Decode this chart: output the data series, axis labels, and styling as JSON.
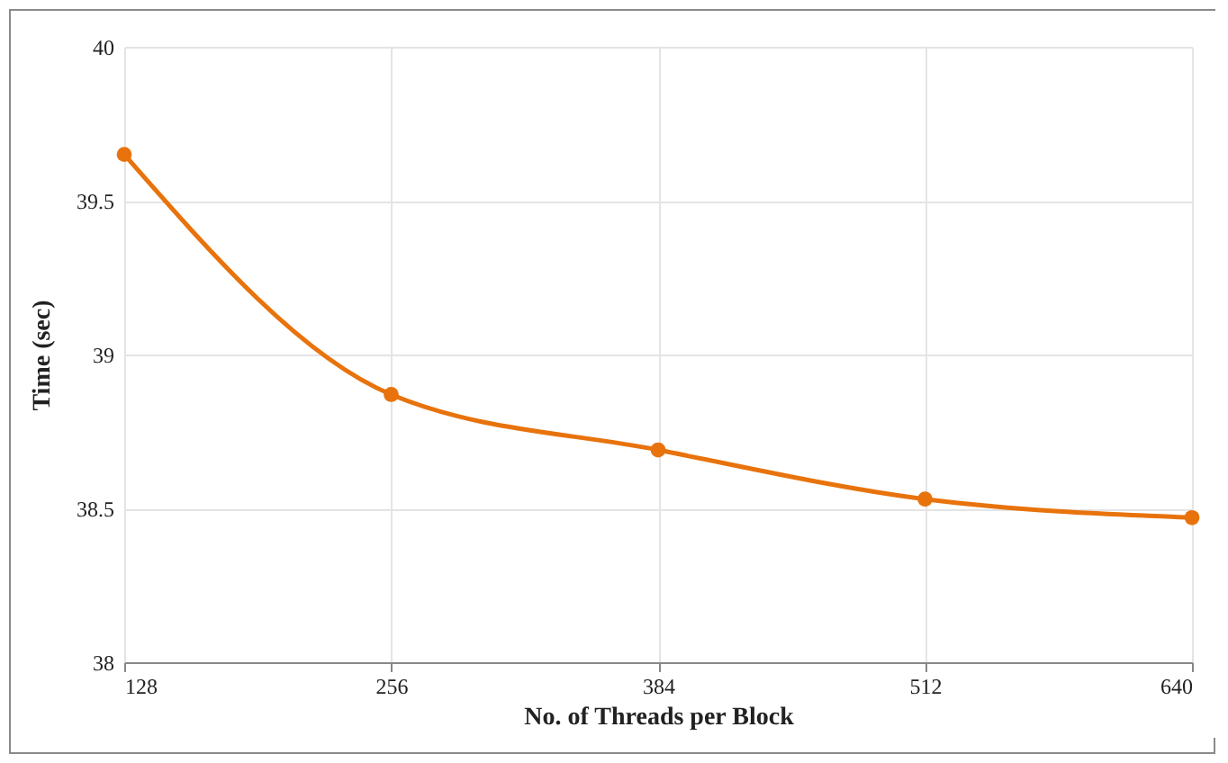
{
  "chart_data": {
    "type": "line",
    "xlabel": "No. of Threads per Block",
    "ylabel": "Time (sec)",
    "x": [
      128,
      256,
      384,
      512,
      640
    ],
    "series": [
      {
        "color": "#e8730c",
        "values": [
          39.65,
          38.87,
          38.69,
          38.53,
          38.47
        ]
      }
    ],
    "xlim": [
      128,
      640
    ],
    "xticks": [
      128,
      256,
      384,
      512,
      640
    ],
    "ylim": [
      38,
      40
    ],
    "yticks": [
      38,
      38.5,
      39,
      39.5,
      40
    ],
    "grid": true,
    "marker": "circle",
    "line_style": "solid"
  }
}
